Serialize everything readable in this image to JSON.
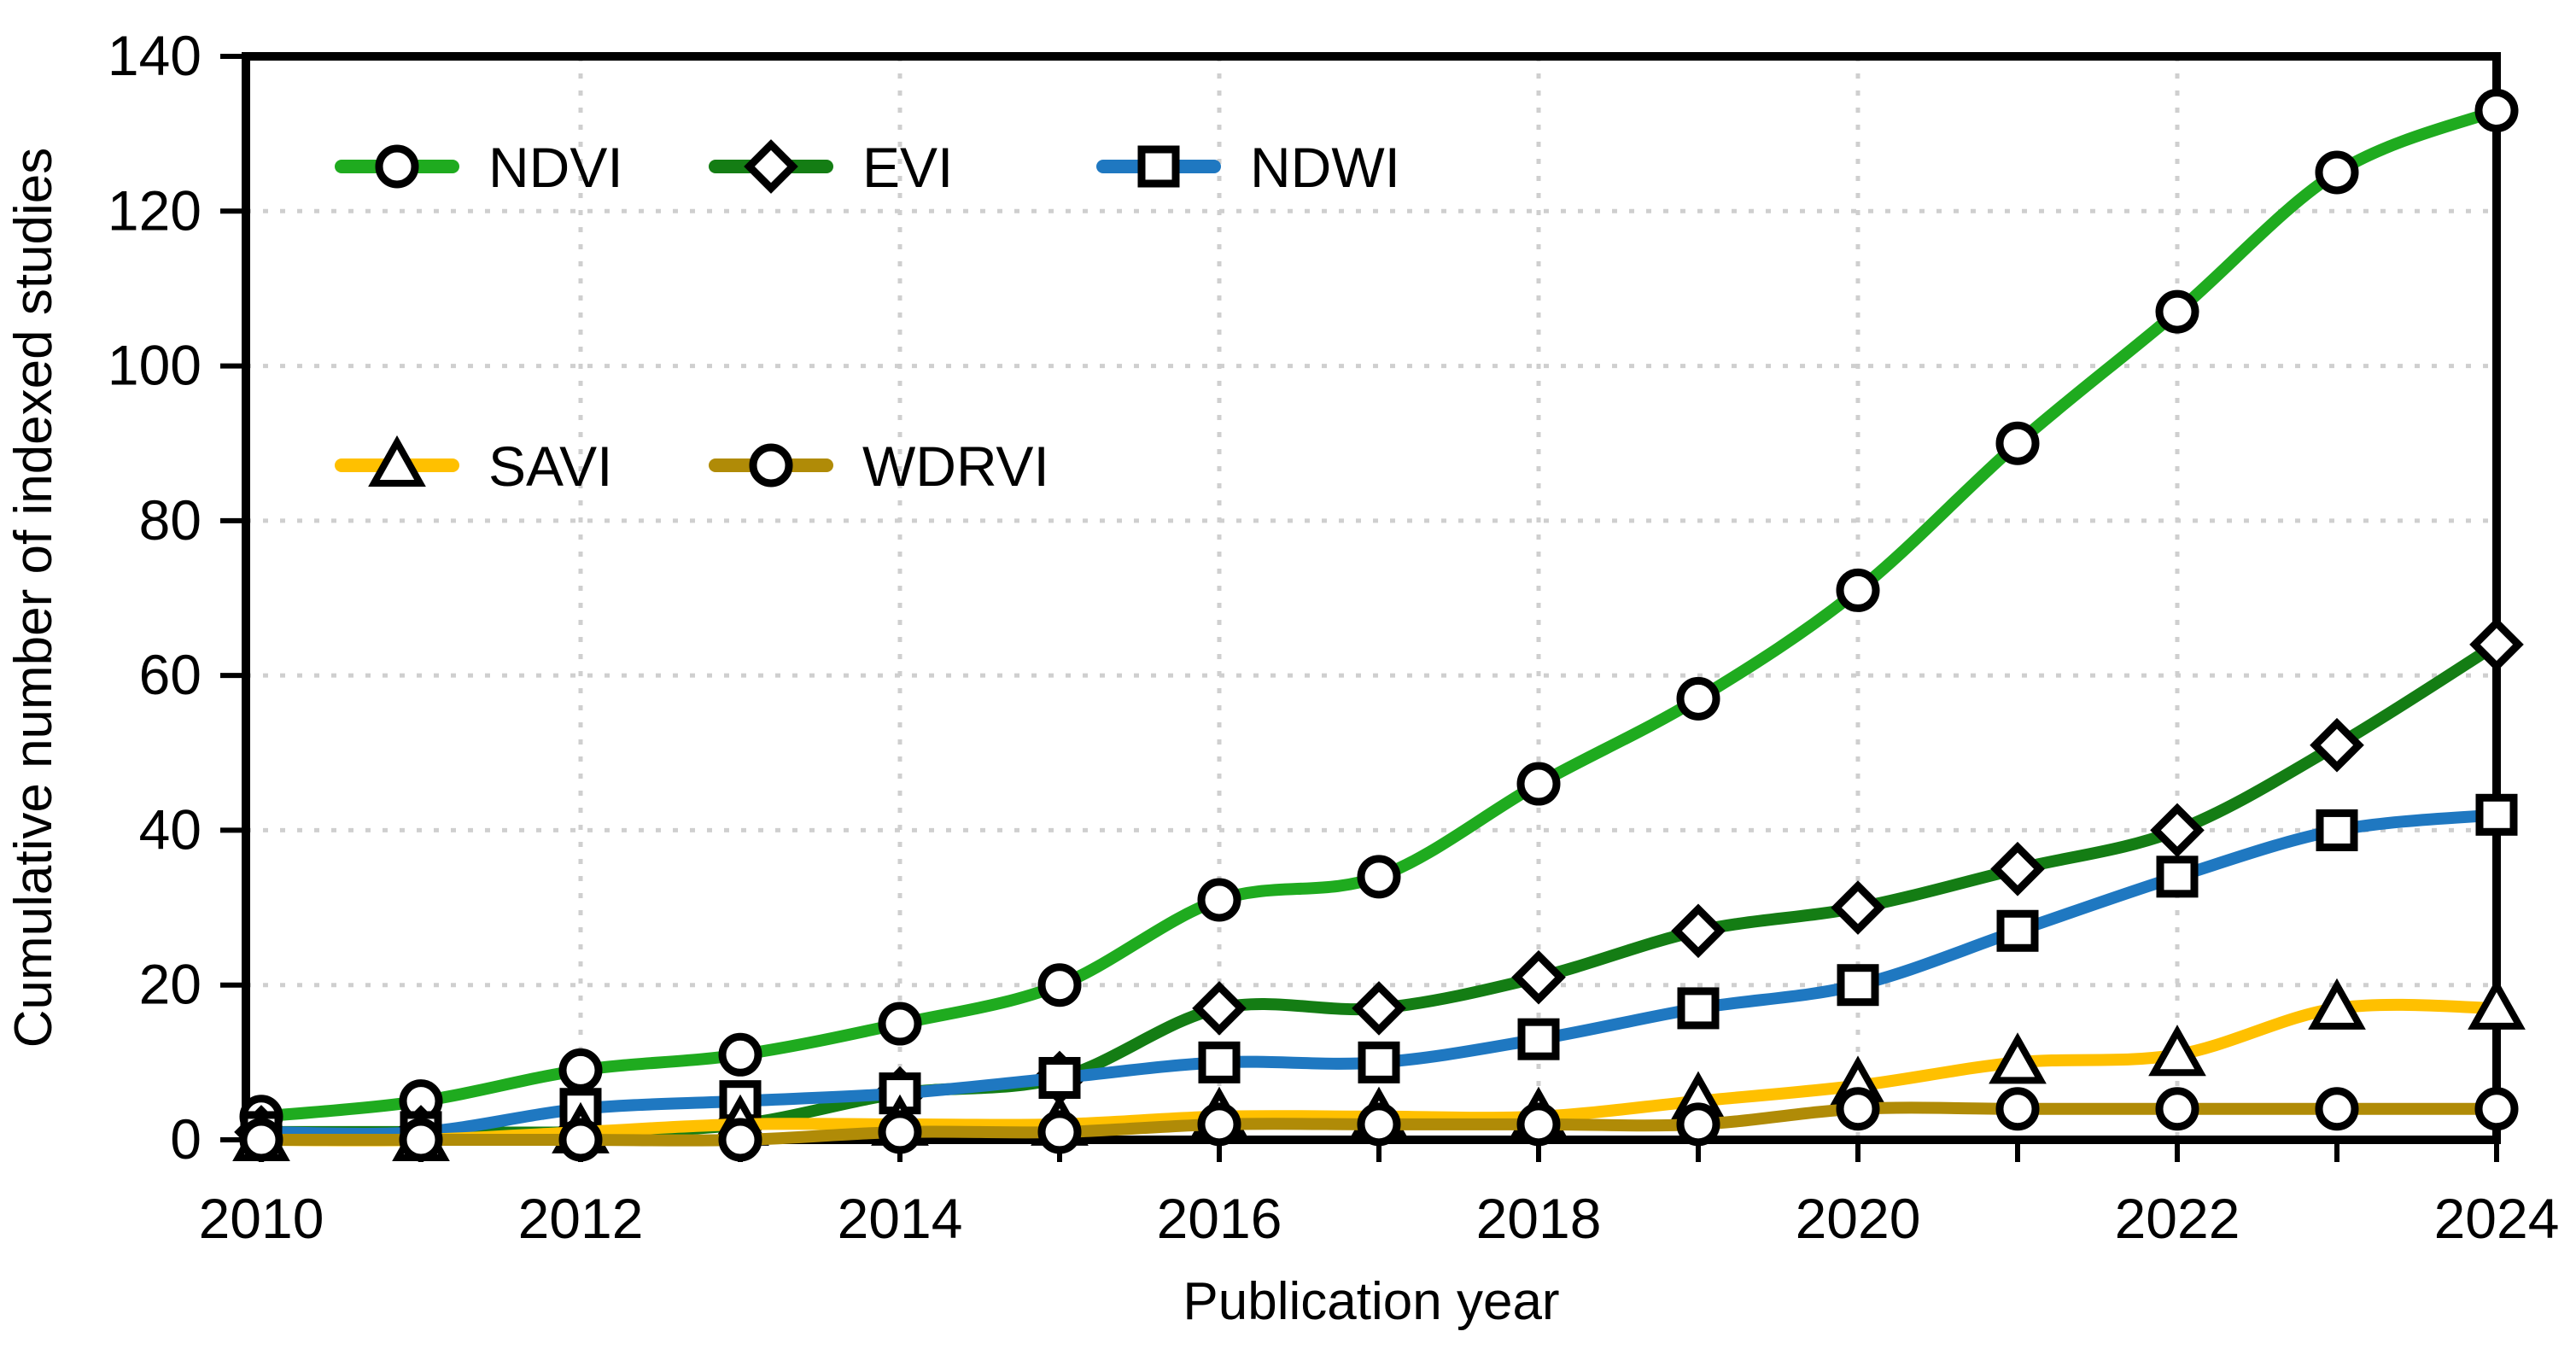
{
  "axes": {
    "y_title": "Cumulative number of indexed studies",
    "x_title": "Publication year",
    "x_tick_labels": [
      2010,
      2012,
      2014,
      2016,
      2018,
      2020,
      2022,
      2024
    ],
    "y_tick_labels": [
      0,
      20,
      40,
      60,
      80,
      100,
      120,
      140
    ]
  },
  "legend": {
    "rows": [
      [
        "NDVI",
        "EVI",
        "NDWI"
      ],
      [
        "SAVI",
        "WDRVI"
      ]
    ]
  },
  "colors": {
    "frame": "#000000",
    "gridline": "#cfcfcf",
    "marker_fill": "#ffffff",
    "marker_stroke": "#000000",
    "background": "#ffffff"
  },
  "chart_data": {
    "type": "line",
    "title": "",
    "xlabel": "Publication year",
    "ylabel": "Cumulative number of indexed studies",
    "x": [
      2010,
      2011,
      2012,
      2013,
      2014,
      2015,
      2016,
      2017,
      2018,
      2019,
      2020,
      2021,
      2022,
      2023,
      2024
    ],
    "xlim": [
      2010,
      2024
    ],
    "ylim": [
      0,
      140
    ],
    "y_tick_step": 20,
    "grid": "dotted, horizontal at 20-unit steps, vertical at even years",
    "legend_position": "inside top-left, two rows",
    "line_smoothing": true,
    "series": [
      {
        "name": "NDVI",
        "marker": "circle",
        "color": "#1fab1f",
        "values": [
          3,
          5,
          9,
          11,
          15,
          20,
          31,
          34,
          46,
          57,
          71,
          90,
          107,
          125,
          133
        ]
      },
      {
        "name": "EVI",
        "marker": "diamond",
        "color": "#147d14",
        "values": [
          1,
          1,
          1,
          2,
          6,
          8,
          17,
          17,
          21,
          27,
          30,
          35,
          40,
          51,
          64
        ]
      },
      {
        "name": "NDWI",
        "marker": "square",
        "color": "#1f78c1",
        "values": [
          1,
          1,
          4,
          5,
          6,
          8,
          10,
          10,
          13,
          17,
          20,
          27,
          34,
          40,
          42
        ]
      },
      {
        "name": "SAVI",
        "marker": "triangle",
        "color": "#ffc000",
        "values": [
          0,
          0,
          1,
          2,
          2,
          2,
          3,
          3,
          3,
          5,
          7,
          10,
          11,
          17,
          17
        ]
      },
      {
        "name": "WDRVI",
        "marker": "circle",
        "color": "#b08b07",
        "values": [
          0,
          0,
          0,
          0,
          1,
          1,
          2,
          2,
          2,
          2,
          4,
          4,
          4,
          4,
          4
        ]
      }
    ]
  }
}
